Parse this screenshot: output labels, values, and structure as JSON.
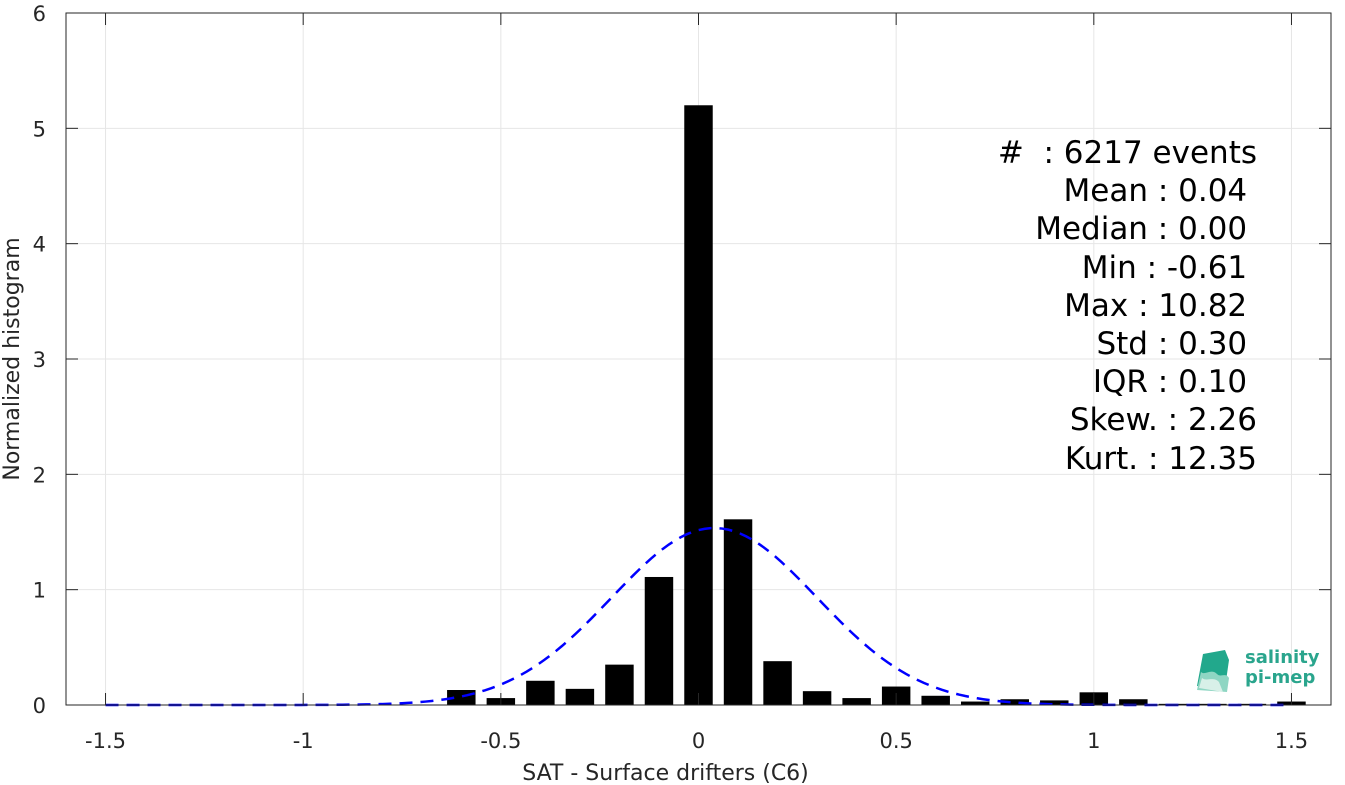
{
  "chart_data": {
    "type": "bar",
    "xlabel": "SAT - Surface drifters (C6)",
    "ylabel": "Normalized histogram",
    "xlim": [
      -1.6,
      1.6
    ],
    "ylim": [
      0,
      6
    ],
    "xticks": [
      -1.5,
      -1,
      -0.5,
      0,
      0.5,
      1,
      1.5
    ],
    "xtick_labels": [
      "-1.5",
      "-1",
      "-0.5",
      "0",
      "0.5",
      "1",
      "1.5"
    ],
    "yticks": [
      0,
      1,
      2,
      3,
      4,
      5,
      6
    ],
    "ytick_labels": [
      "0",
      "1",
      "2",
      "3",
      "4",
      "5",
      "6"
    ],
    "grid": true,
    "bin_width": 0.1,
    "bins": [
      {
        "x": -0.6,
        "y": 0.13
      },
      {
        "x": -0.5,
        "y": 0.06
      },
      {
        "x": -0.4,
        "y": 0.21
      },
      {
        "x": -0.3,
        "y": 0.14
      },
      {
        "x": -0.2,
        "y": 0.35
      },
      {
        "x": -0.1,
        "y": 1.11
      },
      {
        "x": 0.0,
        "y": 5.2
      },
      {
        "x": 0.1,
        "y": 1.61
      },
      {
        "x": 0.2,
        "y": 0.38
      },
      {
        "x": 0.3,
        "y": 0.12
      },
      {
        "x": 0.4,
        "y": 0.06
      },
      {
        "x": 0.5,
        "y": 0.16
      },
      {
        "x": 0.6,
        "y": 0.08
      },
      {
        "x": 0.7,
        "y": 0.03
      },
      {
        "x": 0.8,
        "y": 0.05
      },
      {
        "x": 0.9,
        "y": 0.04
      },
      {
        "x": 1.0,
        "y": 0.11
      },
      {
        "x": 1.1,
        "y": 0.05
      },
      {
        "x": 1.2,
        "y": 0.01
      },
      {
        "x": 1.3,
        "y": 0.01
      },
      {
        "x": 1.4,
        "y": 0.01
      },
      {
        "x": 1.5,
        "y": 0.03
      }
    ],
    "fit_curve": {
      "type": "gaussian",
      "mean": 0.04,
      "std": 0.26,
      "x_range": [
        -1.5,
        1.5
      ],
      "color": "#0000ff",
      "style": "dashed"
    },
    "bar_color": "#000000"
  },
  "stats": [
    "#  : 6217 events",
    "Mean : 0.04 ",
    "Median : 0.00 ",
    "Min : -0.61 ",
    "Max : 10.82 ",
    "Std : 0.30 ",
    "IQR : 0.10 ",
    "Skew. : 2.26",
    "Kurt. : 12.35"
  ],
  "logo": {
    "line1": "salinity",
    "line2": "pi-mep",
    "color": "#2aa58d"
  }
}
